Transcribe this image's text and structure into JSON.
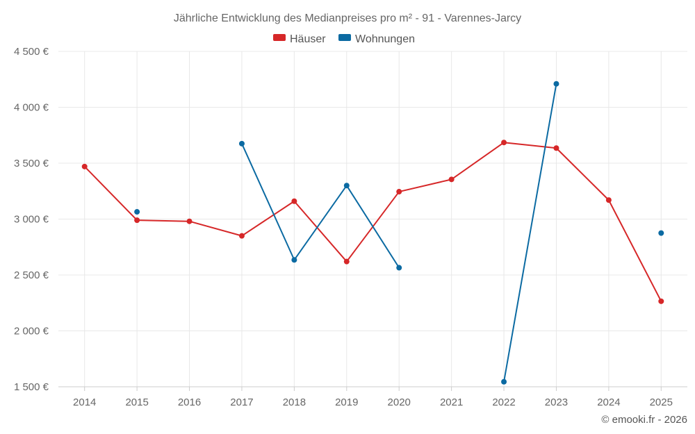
{
  "chart_data": {
    "type": "line",
    "title": "Jährliche Entwicklung des Medianpreises pro m² - 91 - Varennes-Jarcy",
    "categories": [
      "2014",
      "2015",
      "2016",
      "2017",
      "2018",
      "2019",
      "2020",
      "2021",
      "2022",
      "2023",
      "2024",
      "2025"
    ],
    "series": [
      {
        "name": "Häuser",
        "color": "#d62728",
        "values": [
          3470,
          2990,
          2980,
          2850,
          3160,
          2620,
          3245,
          3355,
          3685,
          3635,
          3170,
          2265
        ]
      },
      {
        "name": "Wohnungen",
        "color": "#0b6aa2",
        "values": [
          null,
          3065,
          null,
          3675,
          2635,
          3300,
          2565,
          null,
          1545,
          4210,
          null,
          2875
        ]
      }
    ],
    "ylim": [
      1500,
      4500
    ],
    "yticks": [
      1500,
      2000,
      2500,
      3000,
      3500,
      4000,
      4500
    ],
    "ytick_labels": [
      "1 500 €",
      "2 000 €",
      "2 500 €",
      "3 000 €",
      "3 500 €",
      "4 000 €",
      "4 500 €"
    ],
    "xlabel": "",
    "ylabel": "",
    "legend": "top-center",
    "grid": true
  },
  "credit": "© emooki.fr - 2026"
}
